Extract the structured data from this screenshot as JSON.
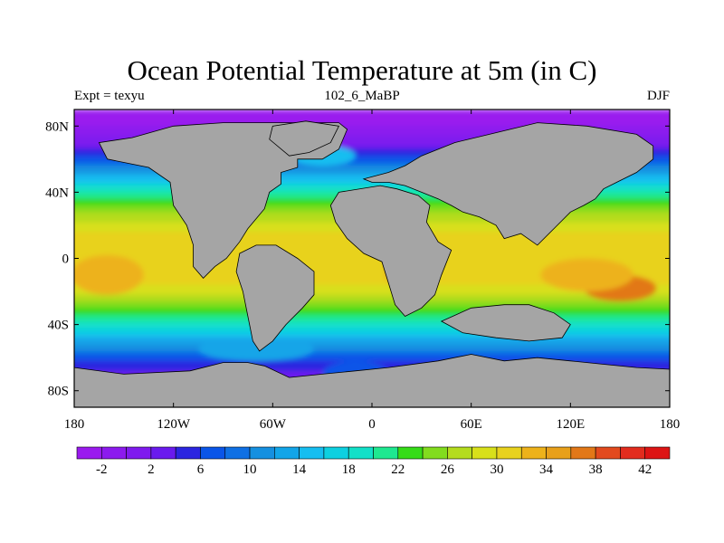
{
  "chart_data": {
    "type": "heatmap",
    "title": "Ocean Potential Temperature at 5m (in C)",
    "left_label": "Expt = texyu",
    "center_label": "102_6_MaBP",
    "right_label": "DJF",
    "x_axis": {
      "min": -180,
      "max": 180,
      "ticks": [
        -180,
        -120,
        -60,
        0,
        60,
        120,
        180
      ],
      "tick_labels": [
        "180",
        "120W",
        "60W",
        "0",
        "60E",
        "120E",
        "180"
      ]
    },
    "y_axis": {
      "min": -90,
      "max": 90,
      "ticks": [
        80,
        40,
        0,
        -40,
        -80
      ],
      "tick_labels": [
        "80N",
        "40N",
        "0",
        "40S",
        "80S"
      ]
    },
    "land_color": "#A5A5A5",
    "colorbar": {
      "levels": [
        -4,
        -2,
        0,
        2,
        4,
        6,
        8,
        10,
        12,
        14,
        16,
        18,
        20,
        22,
        24,
        26,
        28,
        30,
        32,
        34,
        36,
        38,
        40,
        42,
        44
      ],
      "labels": [
        "-2",
        "2",
        "6",
        "10",
        "14",
        "18",
        "22",
        "26",
        "30",
        "34",
        "38",
        "42"
      ],
      "label_values": [
        -2,
        2,
        6,
        10,
        14,
        18,
        22,
        26,
        30,
        34,
        38,
        42
      ],
      "colors": [
        "#9A1AEE",
        "#8C1AEE",
        "#7F1AEE",
        "#6A1AEE",
        "#2B25E0",
        "#0A55E8",
        "#0F70E4",
        "#1590E0",
        "#12A5E8",
        "#16BEF0",
        "#0DD0E0",
        "#12E0C8",
        "#1EE890",
        "#36DC18",
        "#82DC1E",
        "#B4DC1E",
        "#D8E01A",
        "#E8D21E",
        "#EDB21A",
        "#E8A01A",
        "#E27818",
        "#E24A1E",
        "#E22C1E",
        "#DD1414"
      ]
    },
    "temperature_profile": {
      "lat": [
        90,
        80,
        70,
        60,
        50,
        40,
        30,
        20,
        10,
        0,
        -10,
        -20,
        -30,
        -40,
        -50,
        -60,
        -70,
        -80,
        -90
      ],
      "temp": [
        -3,
        -2,
        1,
        7,
        14,
        20,
        25,
        29,
        31,
        31,
        31,
        29,
        24,
        19,
        13,
        7,
        3,
        1,
        0
      ]
    }
  }
}
